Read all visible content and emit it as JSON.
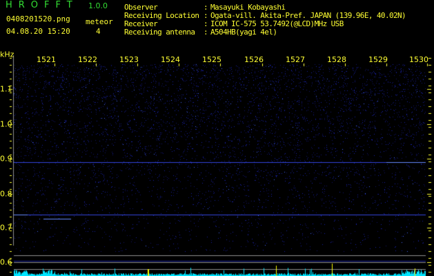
{
  "app": {
    "title": "HROFFT",
    "version": "1.0.0"
  },
  "file": {
    "name": "0408201520.png",
    "datetime": "04.08.20 15:20"
  },
  "meteor": {
    "label": "meteor",
    "count": "4"
  },
  "info": [
    {
      "label": "Observer",
      "value": "Masayuki Kobayashi"
    },
    {
      "label": "Receiving Location",
      "value": "Ogata-vill. Akita-Pref. JAPAN (139.96E, 40.02N)"
    },
    {
      "label": "Receiver",
      "value": "ICOM IC-575 53.7492(@LCD)MHz USB"
    },
    {
      "label": "Receiving antenna",
      "value": "A504HB(yagi 4el)"
    }
  ],
  "spectrogram": {
    "y_unit": "kHz",
    "x_ticks": [
      "1521",
      "1522",
      "1523",
      "1524",
      "1525",
      "1526",
      "1527",
      "1528",
      "1529",
      "1530"
    ],
    "y_ticks": [
      "1.1",
      "1.0",
      "0.9",
      "0.8",
      "0.7",
      "0.6"
    ],
    "colors": {
      "background": "#000000",
      "noise": "#2233cc",
      "histogram": "#00e5ff",
      "axis": "#ffff33",
      "meteor_marker": "#ffff00",
      "grid": "#909090"
    }
  }
}
